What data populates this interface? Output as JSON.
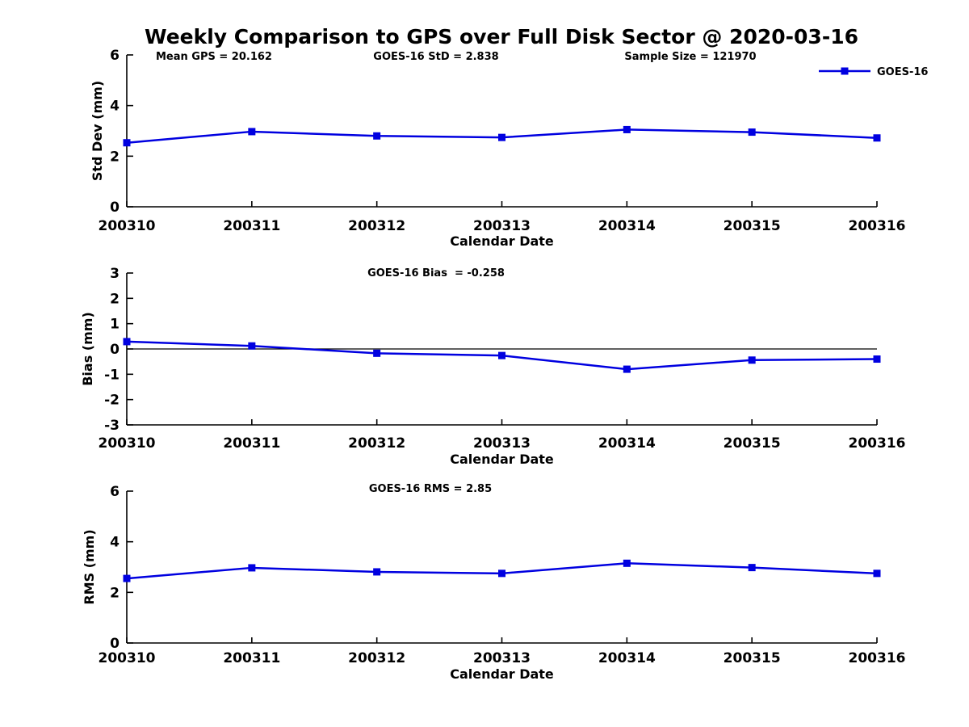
{
  "figure": {
    "title": "Weekly Comparison to GPS over Full Disk Sector @ 2020-03-16"
  },
  "colors": {
    "series": "#0000e0",
    "axis": "#000000",
    "zero_line": "#000000",
    "text": "#000000"
  },
  "chart_data": [
    {
      "type": "line",
      "id": "chart-std-dev",
      "name": "std-dev",
      "annotations": [
        "Mean GPS = 20.162",
        "GOES-16 StD = 2.838",
        "Sample Size = 121970"
      ],
      "categories": [
        "200310",
        "200311",
        "200312",
        "200313",
        "200314",
        "200315",
        "200316"
      ],
      "series": [
        {
          "name": "GOES-16",
          "color": "#0000e0",
          "values": [
            2.53,
            2.97,
            2.8,
            2.74,
            3.05,
            2.95,
            2.72
          ]
        }
      ],
      "xlabel": "Calendar Date",
      "ylabel": "Std Dev (mm)",
      "ylim": [
        0,
        6
      ],
      "yticks": [
        0,
        2,
        4,
        6
      ],
      "zero_line": false,
      "grid": false,
      "legend": {
        "show": true,
        "label": "GOES-16",
        "position": "top-right"
      }
    },
    {
      "type": "line",
      "id": "chart-bias",
      "name": "bias",
      "annotations": [
        "GOES-16 Bias  = -0.258"
      ],
      "categories": [
        "200310",
        "200311",
        "200312",
        "200313",
        "200314",
        "200315",
        "200316"
      ],
      "series": [
        {
          "name": "GOES-16",
          "color": "#0000e0",
          "values": [
            0.29,
            0.12,
            -0.17,
            -0.26,
            -0.8,
            -0.44,
            -0.4
          ]
        }
      ],
      "xlabel": "Calendar Date",
      "ylabel": "Bias (mm)",
      "ylim": [
        -3,
        3
      ],
      "yticks": [
        -3,
        -2,
        -1,
        0,
        1,
        2,
        3
      ],
      "zero_line": true,
      "grid": false,
      "legend": {
        "show": false
      }
    },
    {
      "type": "line",
      "id": "chart-rms",
      "name": "rms",
      "annotations": [
        "GOES-16 RMS = 2.85"
      ],
      "categories": [
        "200310",
        "200311",
        "200312",
        "200313",
        "200314",
        "200315",
        "200316"
      ],
      "series": [
        {
          "name": "GOES-16",
          "color": "#0000e0",
          "values": [
            2.55,
            2.97,
            2.81,
            2.75,
            3.15,
            2.98,
            2.75
          ]
        }
      ],
      "xlabel": "Calendar Date",
      "ylabel": "RMS (mm)",
      "ylim": [
        0,
        6
      ],
      "yticks": [
        0,
        2,
        4,
        6
      ],
      "zero_line": false,
      "grid": false,
      "legend": {
        "show": false
      }
    }
  ]
}
